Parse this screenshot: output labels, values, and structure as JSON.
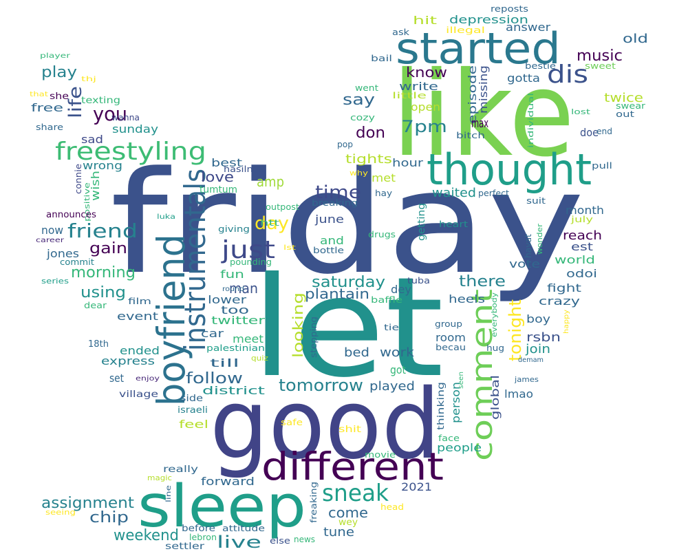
{
  "words": [
    {
      "text": "friday",
      "color": "#3b528b"
    },
    {
      "text": "like",
      "color": "#7ad151"
    },
    {
      "text": "let",
      "color": "#21918c"
    },
    {
      "text": "good",
      "color": "#414487"
    },
    {
      "text": "started",
      "color": "#2a788e"
    },
    {
      "text": "thought",
      "color": "#1f9e89"
    },
    {
      "text": "different",
      "color": "#440154"
    },
    {
      "text": "sleep",
      "color": "#1f9e89"
    },
    {
      "text": "boyfriend",
      "color": "#2c728e"
    },
    {
      "text": "instrumentals",
      "color": "#31688e"
    },
    {
      "text": "freestyling",
      "color": "#3dbc74"
    },
    {
      "text": "comment",
      "color": "#6ece58"
    },
    {
      "text": "just",
      "color": "#3e4989"
    },
    {
      "text": "sneak",
      "color": "#1f9e89"
    },
    {
      "text": "dis",
      "color": "#3b528b"
    },
    {
      "text": "you",
      "color": "#440154"
    },
    {
      "text": "friend",
      "color": "#26828e"
    },
    {
      "text": "life",
      "color": "#3b528b"
    },
    {
      "text": "play",
      "color": "#26828e"
    },
    {
      "text": "free",
      "color": "#31688e"
    },
    {
      "text": "she",
      "color": "#440154"
    },
    {
      "text": "texting",
      "color": "#35b779"
    },
    {
      "text": "sad",
      "color": "#3e4989"
    },
    {
      "text": "sunday",
      "color": "#21918c"
    },
    {
      "text": "share",
      "color": "#31688e"
    },
    {
      "text": "wanna",
      "color": "#3e4989"
    },
    {
      "text": "wrong",
      "color": "#26828e"
    },
    {
      "text": "wish",
      "color": "#35b779"
    },
    {
      "text": "connie",
      "color": "#3e4989"
    },
    {
      "text": "positive",
      "color": "#35b779"
    },
    {
      "text": "best",
      "color": "#31688e"
    },
    {
      "text": "hasilnya",
      "color": "#3b528b"
    },
    {
      "text": "love",
      "color": "#3e4989"
    },
    {
      "text": "tumtum",
      "color": "#35b779"
    },
    {
      "text": "amp",
      "color": "#a0da39"
    },
    {
      "text": "day",
      "color": "#fde725"
    },
    {
      "text": "time",
      "color": "#3e4989"
    },
    {
      "text": "announces",
      "color": "#440154"
    },
    {
      "text": "now",
      "color": "#31688e"
    },
    {
      "text": "gain",
      "color": "#440154"
    },
    {
      "text": "jones",
      "color": "#31688e"
    },
    {
      "text": "commit",
      "color": "#26828e"
    },
    {
      "text": "morning",
      "color": "#35b779"
    },
    {
      "text": "using",
      "color": "#21918c"
    },
    {
      "text": "series",
      "color": "#1f9e89"
    },
    {
      "text": "career",
      "color": "#482878"
    },
    {
      "text": "luka",
      "color": "#1f9e89"
    },
    {
      "text": "film",
      "color": "#31688e"
    },
    {
      "text": "dear",
      "color": "#35b779"
    },
    {
      "text": "event",
      "color": "#31688e"
    },
    {
      "text": "18th",
      "color": "#31688e"
    },
    {
      "text": "ended",
      "color": "#21918c"
    },
    {
      "text": "express",
      "color": "#26828e"
    },
    {
      "text": "set",
      "color": "#31688e"
    },
    {
      "text": "enjoy",
      "color": "#482878"
    },
    {
      "text": "village",
      "color": "#3b528b"
    },
    {
      "text": "side",
      "color": "#31688e"
    },
    {
      "text": "district",
      "color": "#21918c"
    },
    {
      "text": "follow",
      "color": "#31688e"
    },
    {
      "text": "israeli",
      "color": "#26828e"
    },
    {
      "text": "feel",
      "color": "#b5de2b"
    },
    {
      "text": "safe",
      "color": "#fde725"
    },
    {
      "text": "shit",
      "color": "#fde725"
    },
    {
      "text": "till",
      "color": "#31688e"
    },
    {
      "text": "car",
      "color": "#31688e"
    },
    {
      "text": "twitter",
      "color": "#35b779"
    },
    {
      "text": "too",
      "color": "#31688e"
    },
    {
      "text": "lower",
      "color": "#31688e"
    },
    {
      "text": "man",
      "color": "#3b528b"
    },
    {
      "text": "fun",
      "color": "#35b779"
    },
    {
      "text": "pounding",
      "color": "#35b779"
    },
    {
      "text": "giving",
      "color": "#26828e"
    },
    {
      "text": "htt",
      "color": "#35b779"
    },
    {
      "text": "outpost",
      "color": "#35b779"
    },
    {
      "text": "meet",
      "color": "#35b779"
    },
    {
      "text": "palestinian",
      "color": "#1f9e89"
    },
    {
      "text": "quiz",
      "color": "#b5de2b"
    },
    {
      "text": "looking",
      "color": "#b5de2b"
    },
    {
      "text": "plantain",
      "color": "#31688e"
    },
    {
      "text": "saturday",
      "color": "#21918c"
    },
    {
      "text": "tomorrow",
      "color": "#26828e"
    },
    {
      "text": "stepping",
      "color": "#31688e"
    },
    {
      "text": "bed",
      "color": "#31688e"
    },
    {
      "text": "work",
      "color": "#31688e"
    },
    {
      "text": "got",
      "color": "#35b779"
    },
    {
      "text": "played",
      "color": "#31688e"
    },
    {
      "text": "tie",
      "color": "#31688e"
    },
    {
      "text": "baffle",
      "color": "#35b779"
    },
    {
      "text": "tuba",
      "color": "#3b528b"
    },
    {
      "text": "dey",
      "color": "#31688e"
    },
    {
      "text": "there",
      "color": "#26828e"
    },
    {
      "text": "heels",
      "color": "#31688e"
    },
    {
      "text": "room",
      "color": "#31688e"
    },
    {
      "text": "becau",
      "color": "#31688e"
    },
    {
      "text": "group",
      "color": "#31688e"
    },
    {
      "text": "hug",
      "color": "#31688e"
    },
    {
      "text": "tonight",
      "color": "#fde725"
    },
    {
      "text": "person",
      "color": "#21918c"
    },
    {
      "text": "global",
      "color": "#3b528b"
    },
    {
      "text": "lmao",
      "color": "#31688e"
    },
    {
      "text": "thinking",
      "color": "#31688e"
    },
    {
      "text": "seen",
      "color": "#35b779"
    },
    {
      "text": "join",
      "color": "#21918c"
    },
    {
      "text": "rsbn",
      "color": "#3b528b"
    },
    {
      "text": "boy",
      "color": "#31688e"
    },
    {
      "text": "crazy",
      "color": "#31688e"
    },
    {
      "text": "fight",
      "color": "#31688e"
    },
    {
      "text": "odoi",
      "color": "#31688e"
    },
    {
      "text": "world",
      "color": "#35b779"
    },
    {
      "text": "est",
      "color": "#3b528b"
    },
    {
      "text": "reach",
      "color": "#440154"
    },
    {
      "text": "vote",
      "color": "#31688e"
    },
    {
      "text": "everybody",
      "color": "#35b779"
    },
    {
      "text": "happy",
      "color": "#fde725"
    },
    {
      "text": "demam",
      "color": "#31688e"
    },
    {
      "text": "james",
      "color": "#31688e"
    },
    {
      "text": "wonder",
      "color": "#35b779"
    },
    {
      "text": "havat",
      "color": "#31688e"
    },
    {
      "text": "july",
      "color": "#b5de2b"
    },
    {
      "text": "month",
      "color": "#31688e"
    },
    {
      "text": "suit",
      "color": "#31688e"
    },
    {
      "text": "perfect",
      "color": "#31688e"
    },
    {
      "text": "waited",
      "color": "#21918c"
    },
    {
      "text": "getting",
      "color": "#21918c"
    },
    {
      "text": "heart",
      "color": "#21918c"
    },
    {
      "text": "drugs",
      "color": "#35b779"
    },
    {
      "text": "lst",
      "color": "#fde725"
    },
    {
      "text": "and",
      "color": "#35b779"
    },
    {
      "text": "bottle",
      "color": "#31688e"
    },
    {
      "text": "june",
      "color": "#3b528b"
    },
    {
      "text": "breaking",
      "color": "#31688e"
    },
    {
      "text": "hay",
      "color": "#31688e"
    },
    {
      "text": "met",
      "color": "#b5de2b"
    },
    {
      "text": "why",
      "color": "#fde725"
    },
    {
      "text": "pop",
      "color": "#31688e"
    },
    {
      "text": "tights",
      "color": "#b5de2b"
    },
    {
      "text": "hour",
      "color": "#31688e"
    },
    {
      "text": "don",
      "color": "#440154"
    },
    {
      "text": "cozy",
      "color": "#35b779"
    },
    {
      "text": "went",
      "color": "#35b779"
    },
    {
      "text": "say",
      "color": "#31688e"
    },
    {
      "text": "little",
      "color": "#b5de2b"
    },
    {
      "text": "write",
      "color": "#31688e"
    },
    {
      "text": "open",
      "color": "#b5de2b"
    },
    {
      "text": "7pm",
      "color": "#26828e"
    },
    {
      "text": "know",
      "color": "#440154"
    },
    {
      "text": "episode",
      "color": "#31688e"
    },
    {
      "text": "missing",
      "color": "#3b528b"
    },
    {
      "text": "gotta",
      "color": "#31688e"
    },
    {
      "text": "max",
      "color": "#440154"
    },
    {
      "text": "bitch",
      "color": "#31688e"
    },
    {
      "text": "doe",
      "color": "#3b528b"
    },
    {
      "text": "end",
      "color": "#31688e"
    },
    {
      "text": "pull",
      "color": "#31688e"
    },
    {
      "text": "lost",
      "color": "#35b779"
    },
    {
      "text": "individual",
      "color": "#35b779"
    },
    {
      "text": "twice",
      "color": "#b5de2b"
    },
    {
      "text": "swear",
      "color": "#35b779"
    },
    {
      "text": "out",
      "color": "#31688e"
    },
    {
      "text": "sweet",
      "color": "#6ece58"
    },
    {
      "text": "bestie",
      "color": "#31688e"
    },
    {
      "text": "old",
      "color": "#31688e"
    },
    {
      "text": "music",
      "color": "#440154"
    },
    {
      "text": "answer",
      "color": "#31688e"
    },
    {
      "text": "depression",
      "color": "#21918c"
    },
    {
      "text": "hit",
      "color": "#b5de2b"
    },
    {
      "text": "illegal",
      "color": "#fde725"
    },
    {
      "text": "reposts",
      "color": "#31688e"
    },
    {
      "text": "ask",
      "color": "#31688e"
    },
    {
      "text": "bail",
      "color": "#31688e"
    },
    {
      "text": "player",
      "color": "#35b779"
    },
    {
      "text": "thj",
      "color": "#fde725"
    },
    {
      "text": "that",
      "color": "#fde725"
    },
    {
      "text": "round",
      "color": "#31688e"
    },
    {
      "text": "people",
      "color": "#1f9e89"
    },
    {
      "text": "face",
      "color": "#35b779"
    },
    {
      "text": "movie",
      "color": "#35b779"
    },
    {
      "text": "forward",
      "color": "#31688e"
    },
    {
      "text": "really",
      "color": "#31688e"
    },
    {
      "text": "magic",
      "color": "#b5de2b"
    },
    {
      "text": "assignment",
      "color": "#26828e"
    },
    {
      "text": "seeing",
      "color": "#fde725"
    },
    {
      "text": "chip",
      "color": "#31688e"
    },
    {
      "text": "weekend",
      "color": "#21918c"
    },
    {
      "text": "line",
      "color": "#31688e"
    },
    {
      "text": "before",
      "color": "#31688e"
    },
    {
      "text": "attitude",
      "color": "#31688e"
    },
    {
      "text": "lebron",
      "color": "#35b779"
    },
    {
      "text": "settler",
      "color": "#31688e"
    },
    {
      "text": "live",
      "color": "#26828e"
    },
    {
      "text": "freaking",
      "color": "#31688e"
    },
    {
      "text": "else",
      "color": "#3b528b"
    },
    {
      "text": "news",
      "color": "#35b779"
    },
    {
      "text": "tune",
      "color": "#31688e"
    },
    {
      "text": "wey",
      "color": "#b5de2b"
    },
    {
      "text": "come",
      "color": "#31688e"
    },
    {
      "text": "2021",
      "color": "#3b528b"
    },
    {
      "text": "head",
      "color": "#fde725"
    }
  ]
}
